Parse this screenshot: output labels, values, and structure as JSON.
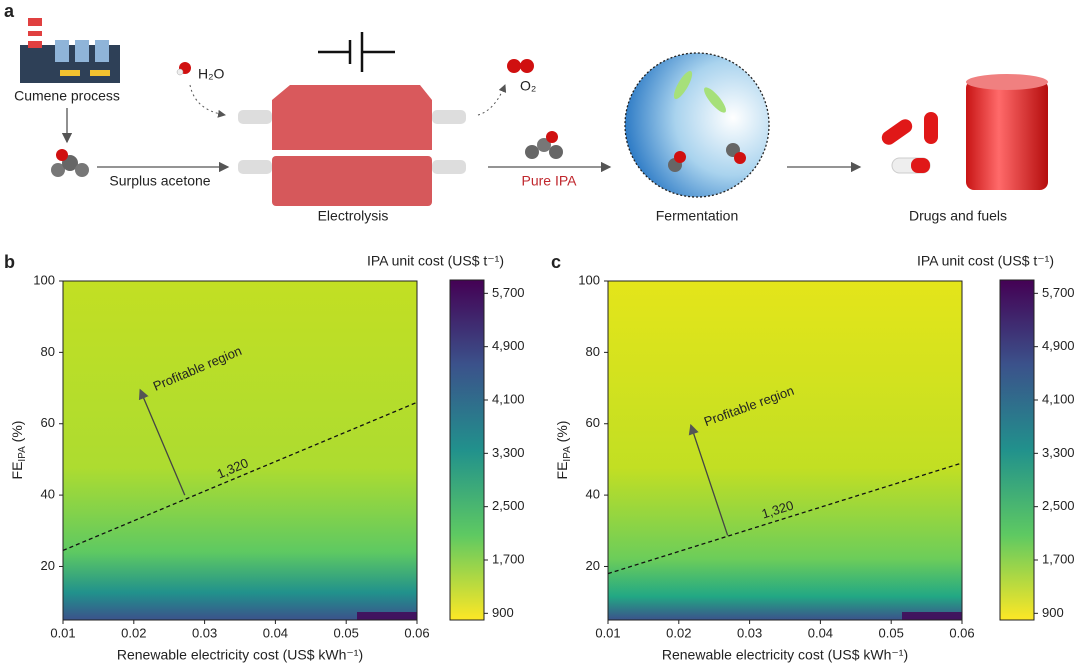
{
  "panel_labels": [
    "a",
    "b",
    "c"
  ],
  "schematic": {
    "labels": {
      "cumene": "Cumene process",
      "acetone": "Surplus acetone",
      "water": "H₂O",
      "electrolysis": "Electrolysis",
      "oxygen": "O₂",
      "ipa": "Pure IPA",
      "fermentation": "Fermentation",
      "products": "Drugs and fuels"
    }
  },
  "chart_data": [
    {
      "type": "heatmap",
      "colorbar_title": "IPA unit cost (US$ t⁻¹)",
      "x_label": "Renewable electricity cost (US$ kWh⁻¹)",
      "y_label": {
        "main": "FE",
        "sub": "IPA",
        "rest": " (%)"
      },
      "xlim": [
        0.01,
        0.06
      ],
      "xticks": [
        0.01,
        0.02,
        0.03,
        0.04,
        0.05,
        0.06
      ],
      "ylim": [
        5,
        100
      ],
      "yticks": [
        20,
        40,
        60,
        80,
        100
      ],
      "clim": [
        800,
        5900
      ],
      "cticks": [
        {
          "value": 900,
          "label": "900"
        },
        {
          "value": 1700,
          "label": "1,700"
        },
        {
          "value": 2500,
          "label": "2,500"
        },
        {
          "value": 3300,
          "label": "3,300"
        },
        {
          "value": 4100,
          "label": "4,100"
        },
        {
          "value": 4900,
          "label": "4,900"
        },
        {
          "value": 5700,
          "label": "5,700"
        }
      ],
      "contour": {
        "level": {
          "value": 1320,
          "label": "1,320"
        },
        "x": [
          0.01,
          0.06
        ],
        "y": [
          24.5,
          66
        ]
      },
      "annotation": "Profitable region"
    },
    {
      "type": "heatmap",
      "colorbar_title": "IPA unit cost (US$ t⁻¹)",
      "x_label": "Renewable electricity cost (US$ kWh⁻¹)",
      "y_label": {
        "main": "FE",
        "sub": "IPA",
        "rest": " (%)"
      },
      "xlim": [
        0.01,
        0.06
      ],
      "xticks": [
        0.01,
        0.02,
        0.03,
        0.04,
        0.05,
        0.06
      ],
      "ylim": [
        5,
        100
      ],
      "yticks": [
        20,
        40,
        60,
        80,
        100
      ],
      "clim": [
        800,
        5900
      ],
      "cticks": [
        {
          "value": 900,
          "label": "900"
        },
        {
          "value": 1700,
          "label": "1,700"
        },
        {
          "value": 2500,
          "label": "2,500"
        },
        {
          "value": 3300,
          "label": "3,300"
        },
        {
          "value": 4100,
          "label": "4,100"
        },
        {
          "value": 4900,
          "label": "4,900"
        },
        {
          "value": 5700,
          "label": "5,700"
        }
      ],
      "contour": {
        "level": {
          "value": 1320,
          "label": "1,320"
        },
        "x": [
          0.01,
          0.06
        ],
        "y": [
          18,
          49
        ]
      },
      "annotation": "Profitable region"
    }
  ]
}
